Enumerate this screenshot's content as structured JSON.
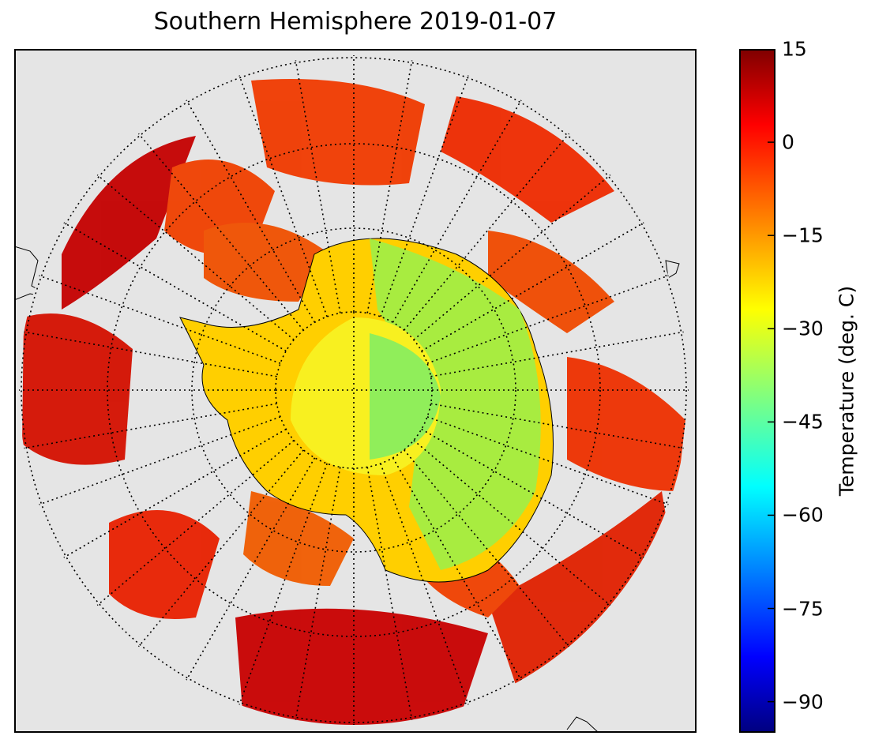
{
  "title": "Southern Hemisphere 2019-01-07",
  "colorbar": {
    "label": "Temperature (deg. C)",
    "min": -95,
    "max": 15,
    "ticks": [
      "15",
      "0",
      "−15",
      "−30",
      "−45",
      "−60",
      "−75",
      "−90"
    ],
    "tick_values": [
      15,
      0,
      -15,
      -30,
      -45,
      -60,
      -75,
      -90
    ],
    "colormap": "jet"
  },
  "map": {
    "projection": "south polar stereographic",
    "background_color": "#e5e5e5",
    "graticule": "dotted",
    "meridian_count": 36,
    "parallel_count": 8
  }
}
